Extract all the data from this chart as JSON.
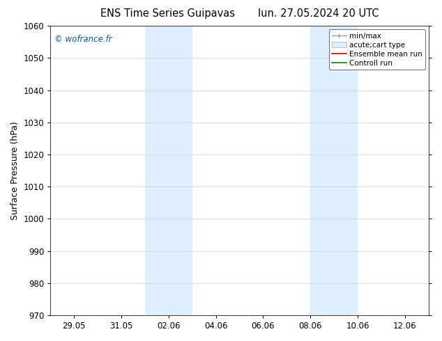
{
  "title_left": "ENS Time Series Guipavas",
  "title_right": "lun. 27.05.2024 20 UTC",
  "ylabel": "Surface Pressure (hPa)",
  "ylim": [
    970,
    1060
  ],
  "yticks": [
    970,
    980,
    990,
    1000,
    1010,
    1020,
    1030,
    1040,
    1050,
    1060
  ],
  "xtick_labels": [
    "29.05",
    "31.05",
    "02.06",
    "04.06",
    "06.06",
    "08.06",
    "10.06",
    "12.06"
  ],
  "xtick_positions": [
    0,
    2,
    4,
    6,
    8,
    10,
    12,
    14
  ],
  "shade_bands": [
    {
      "start": 3,
      "end": 5
    },
    {
      "start": 10,
      "end": 12
    }
  ],
  "shade_color": "#ddeeff",
  "background_color": "#ffffff",
  "watermark": "© wofrance.fr",
  "watermark_color": "#0055bb",
  "legend_items": [
    {
      "label": "min/max",
      "type": "hline_caps",
      "color": "#999999"
    },
    {
      "label": "acute;cart type",
      "type": "box",
      "color": "#aaaaaa"
    },
    {
      "label": "Ensemble mean run",
      "type": "line",
      "color": "#cc0000"
    },
    {
      "label": "Controll run",
      "type": "line",
      "color": "#008800"
    }
  ],
  "title_fontsize": 10.5,
  "tick_fontsize": 8.5,
  "ylabel_fontsize": 9,
  "legend_fontsize": 7.5,
  "grid_color": "#cccccc",
  "grid_linewidth": 0.5,
  "xmin": -1,
  "xmax": 15
}
